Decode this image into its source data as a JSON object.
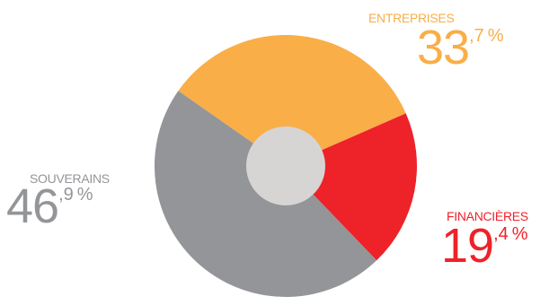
{
  "chart_data": {
    "type": "pie",
    "style": "donut",
    "start_slice": "ENTREPRISES",
    "direction": "clockwise",
    "slices": [
      {
        "name": "ENTREPRISES",
        "value": 33.7,
        "int": "33",
        "dec": ",7",
        "pct": "%",
        "color": "#f9ae47"
      },
      {
        "name": "FINANCIÈRES",
        "value": 19.4,
        "int": "19",
        "dec": ",4",
        "pct": "%",
        "color": "#ee2229"
      },
      {
        "name": "SOUVERAINS",
        "value": 46.9,
        "int": "46",
        "dec": ",9",
        "pct": "%",
        "color": "#939598"
      }
    ],
    "center_hole_color": "#d6d5d4"
  }
}
